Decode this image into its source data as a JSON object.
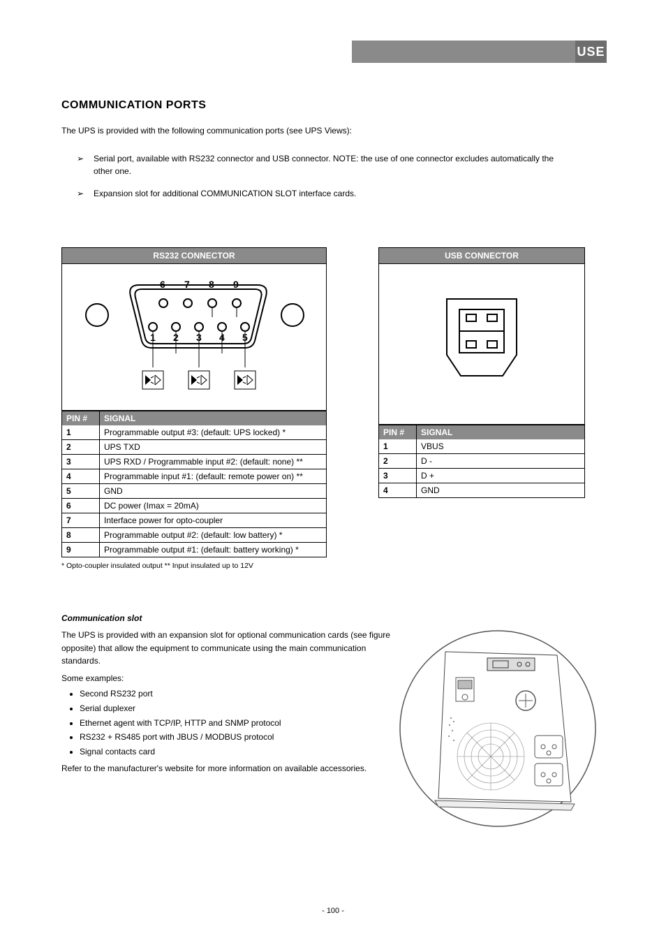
{
  "header": {
    "tab": "USE"
  },
  "section": {
    "title": "COMMUNICATION PORTS",
    "intro": "The UPS is provided with the following communication ports (see UPS Views):"
  },
  "arrows": [
    "Serial port, available with RS232 connector and USB connector. NOTE: the use of one connector excludes automatically the other one.",
    "Expansion slot for additional COMMUNICATION SLOT interface cards."
  ],
  "rs232": {
    "header": "RS232 CONNECTOR",
    "col_pin": "PIN #",
    "col_sig": "SIGNAL",
    "pins": [
      "6",
      "7",
      "8",
      "9",
      "1",
      "2",
      "3",
      "4",
      "5"
    ],
    "rows": [
      {
        "n": "1",
        "s": "Programmable output #3: (default: UPS locked) *"
      },
      {
        "n": "2",
        "s": "UPS TXD"
      },
      {
        "n": "3",
        "s": "UPS RXD / Programmable input #2: (default: none) **"
      },
      {
        "n": "4",
        "s": "Programmable input #1: (default: remote power on) **"
      },
      {
        "n": "5",
        "s": "GND"
      },
      {
        "n": "6",
        "s": "DC power (Imax = 20mA)"
      },
      {
        "n": "7",
        "s": "Interface power for opto-coupler"
      },
      {
        "n": "8",
        "s": "Programmable output #2: (default: low battery) *"
      },
      {
        "n": "9",
        "s": "Programmable output #1: (default: battery working) *"
      }
    ],
    "notes": "* Opto-coupler insulated output   ** Input insulated up to 12V"
  },
  "usb": {
    "header": "USB CONNECTOR",
    "col_pin": "PIN #",
    "col_sig": "SIGNAL",
    "rows": [
      {
        "n": "1",
        "s": "VBUS"
      },
      {
        "n": "2",
        "s": "D -"
      },
      {
        "n": "3",
        "s": "D +"
      },
      {
        "n": "4",
        "s": "GND"
      }
    ]
  },
  "slot": {
    "title": "Communication slot",
    "p1": "The UPS is provided with an expansion slot for optional communication cards (see figure opposite) that allow the equipment to communicate using the main communication standards.",
    "p2": "Some examples:",
    "items": [
      "Second RS232 port",
      "Serial duplexer",
      "Ethernet agent with TCP/IP, HTTP and SNMP protocol",
      "RS232 + RS485 port with JBUS / MODBUS protocol",
      "Signal contacts card"
    ],
    "p3": "Refer to the manufacturer's website for more information on available accessories."
  },
  "page": "- 100 -",
  "colors": {
    "gray": "#8a8a8a",
    "dark": "#6d6d6d"
  }
}
